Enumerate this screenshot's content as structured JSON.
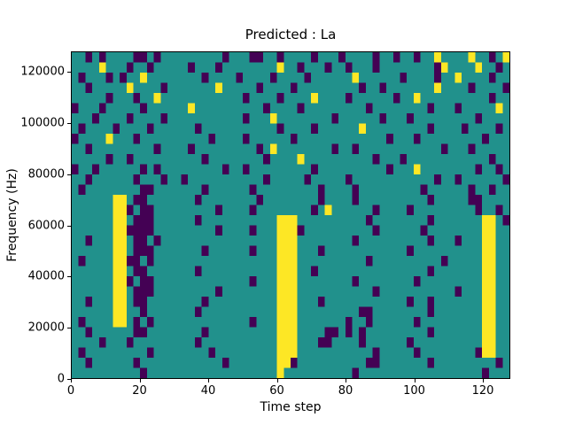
{
  "chart_data": {
    "type": "heatmap",
    "title": "Predicted : La",
    "xlabel": "Time step",
    "ylabel": "Frequency (Hz)",
    "xlim": [
      0,
      128
    ],
    "ylim": [
      0,
      128000
    ],
    "xticks": [
      0,
      20,
      40,
      60,
      80,
      100,
      120
    ],
    "yticks": [
      0,
      20000,
      40000,
      60000,
      80000,
      100000,
      120000
    ],
    "colormap": "viridis",
    "legend": "none",
    "grid_on": false,
    "colors": {
      "mid": "#21918c",
      "low": "#440154",
      "high": "#fde725"
    },
    "grid_encoding": {
      ".": "mid",
      "#": "low",
      "*": "high"
    },
    "grid_shape": [
      32,
      64
    ],
    "cell_size": {
      "time_steps": 2,
      "hz": 4000
    },
    "grid_rows": [
      "..#.#....##.#.........#...##..#....#...#....#..#..#..*....*..#.*",
      "....*...#..#.....#...#........*..#...#..#...#........#*....*..#.",
      ".#...#.#..*........#....#....#....#......*......#....#..*....#..",
      "..#.....*....#.......*.....#....#.........#..#.......*....#....#",
      ".....#...#..*............#....#....*....#......#..*..........#..",
      "#...#.....#......*..........#....#.........#........#...#.....*.",
      "...#....#....#...........#...*........#......#...#.........#....",
      ".#....#....#......#...........#....#......*.........#....#....#.",
      "#....*...#..........#....#......#.............#...#.........#...",
      "..#.........#....#.........#.*........#..#............#...#.....",
      ".....#..#..........#........#....*..........#...#............#..",
      "#..#......#.#.........#..#.........#..........#...*........#..#.",
      "..#......#...#..#...........#.....#.....#............#..#......#",
      ".#........##.......#......#.........#....#.........#......#..#..",
      "......**.##.......#........#........#....#..........#.....##....",
      "......**#.##.........#....#........#.*......#....#.........#..#.",
      "......**.###......#...........***..........#........#.......**.#",
      "......**####.........#....#...***#..........#......#........**..",
      "..#...**.##.#.................***........#..........#...#...**..",
      "......**.###.......#......#...***...#............#..........**..",
      ".#....**##.#..................***..........#..........#.....**..",
      "......**.##.......#...........***..#................#.......**..",
      "......**#.##..............#...***........#........#.........**..",
      "......**.###.........#........***...........#...........#...**..",
      "..#...**.##........#..........***...#............#..#.......**..",
      "......**..#.......#...........***.........##........#.......**..",
      ".#....**.#.#..............#...***.......#..#......#.........**..",
      "..#......##........#..........***....##.#.#.........#.......**..",
      "....#...#.........#...........***...##....#......#..........**..",
      ".#.........#........#.........***...........#.....#........#**..",
      "..#......#............#.......**#..........##.......#.........#.",
      "..........#...................*..........#..................#..."
    ]
  }
}
